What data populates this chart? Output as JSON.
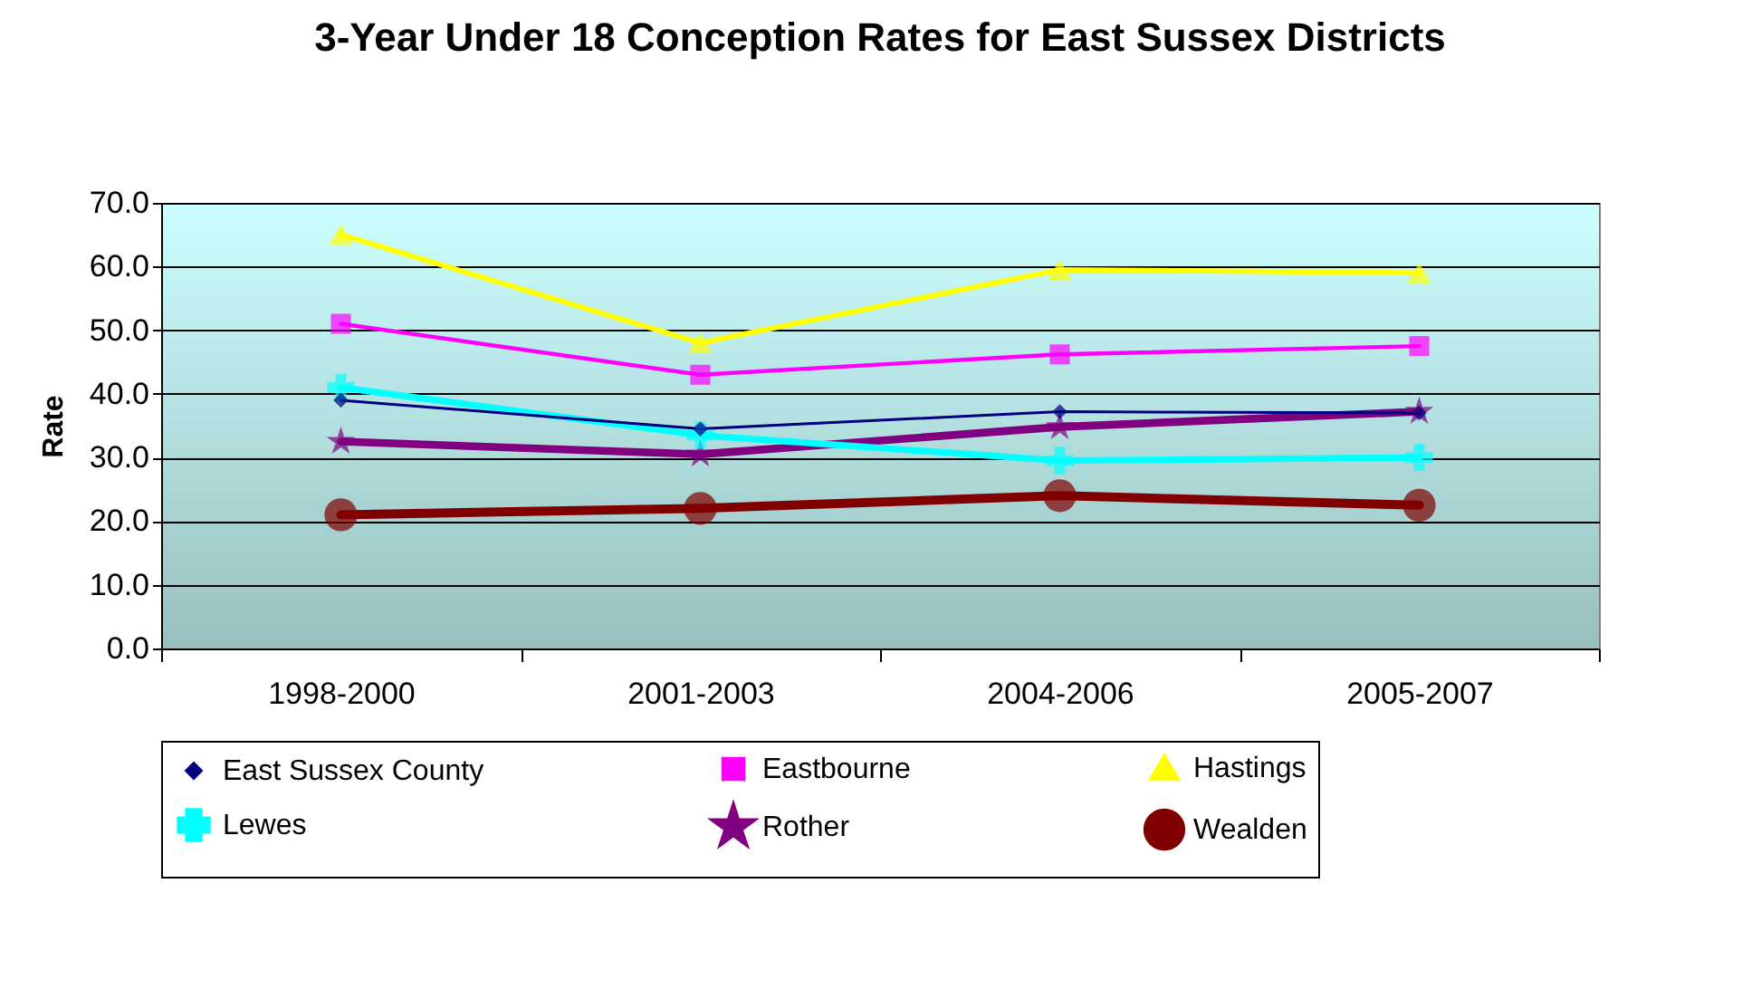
{
  "chart_data": {
    "type": "line",
    "title": "3-Year Under 18 Conception Rates for East Sussex Districts",
    "ylabel": "Rate",
    "categories": [
      "1998-2000",
      "2001-2003",
      "2004-2006",
      "2005-2007"
    ],
    "series": [
      {
        "name": "East Sussex County",
        "color": "#000080",
        "marker": "diamond",
        "values": [
          39,
          34.5,
          37.2,
          37
        ]
      },
      {
        "name": "Eastbourne",
        "color": "#ff00ff",
        "marker": "square",
        "values": [
          51,
          43,
          46.2,
          47.5
        ]
      },
      {
        "name": "Hastings",
        "color": "#ffff00",
        "marker": "triangle",
        "values": [
          65,
          48,
          59.5,
          59
        ]
      },
      {
        "name": "Lewes",
        "color": "#00ffff",
        "marker": "cross",
        "values": [
          41,
          33.5,
          29.5,
          30
        ]
      },
      {
        "name": "Rother",
        "color": "#800080",
        "marker": "star",
        "values": [
          32.5,
          30.5,
          34.8,
          37.2
        ]
      },
      {
        "name": "Wealden",
        "color": "#800000",
        "marker": "circle",
        "values": [
          21,
          22,
          24,
          22.5
        ]
      }
    ],
    "ylim": [
      0,
      70
    ],
    "yticks": [
      {
        "value": 0,
        "label": "0.0"
      },
      {
        "value": 10,
        "label": "10.0"
      },
      {
        "value": 20,
        "label": "20.0"
      },
      {
        "value": 30,
        "label": "30.0"
      },
      {
        "value": 40,
        "label": "40.0"
      },
      {
        "value": 50,
        "label": "50.0"
      },
      {
        "value": 60,
        "label": "60.0"
      },
      {
        "value": 70,
        "label": "70.0"
      }
    ],
    "grid": "y",
    "legend": "bottom",
    "line_style": "solid"
  }
}
